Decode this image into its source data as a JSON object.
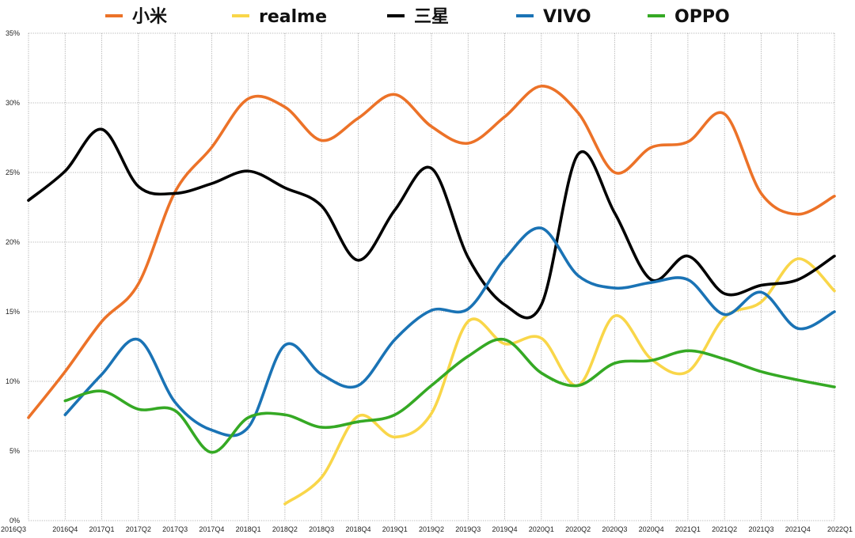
{
  "chart_data": {
    "type": "line",
    "title": "",
    "xlabel": "",
    "ylabel": "",
    "ylim": [
      0,
      35
    ],
    "y_ticks": [
      0,
      5,
      10,
      15,
      20,
      25,
      30,
      35
    ],
    "y_tick_suffix": "%",
    "grid": true,
    "legend_position": "top",
    "categories": [
      "2016Q3",
      "2016Q4",
      "2017Q1",
      "2017Q2",
      "2017Q3",
      "2017Q4",
      "2018Q1",
      "2018Q2",
      "2018Q3",
      "2018Q4",
      "2019Q1",
      "2019Q2",
      "2019Q3",
      "2019Q4",
      "2020Q1",
      "2020Q2",
      "2020Q3",
      "2020Q4",
      "2021Q1",
      "2021Q2",
      "2021Q3",
      "2021Q4",
      "2022Q1"
    ],
    "series": [
      {
        "name": "小米",
        "color": "#ec7228",
        "values": [
          7.4,
          10.7,
          14.3,
          17.0,
          23.6,
          26.8,
          30.3,
          29.7,
          27.3,
          28.9,
          30.6,
          28.3,
          27.1,
          29.0,
          31.2,
          29.3,
          25.0,
          26.8,
          27.2,
          29.2,
          23.5,
          22.0,
          23.3
        ]
      },
      {
        "name": "realme",
        "color": "#f9d649",
        "values": [
          null,
          null,
          null,
          null,
          null,
          null,
          null,
          1.2,
          3.1,
          7.5,
          6.0,
          7.7,
          14.3,
          12.7,
          13.1,
          9.7,
          14.7,
          11.6,
          10.7,
          14.6,
          15.7,
          18.8,
          16.5
        ]
      },
      {
        "name": "三星",
        "color": "#000000",
        "values": [
          23.0,
          25.1,
          28.1,
          24.0,
          23.5,
          24.2,
          25.1,
          23.9,
          22.6,
          18.7,
          22.3,
          25.3,
          18.9,
          15.5,
          15.5,
          26.3,
          22.1,
          17.3,
          19.0,
          16.3,
          16.9,
          17.3,
          19.0
        ]
      },
      {
        "name": "VIVO",
        "color": "#1a73b5",
        "values": [
          null,
          7.6,
          10.5,
          13.0,
          8.5,
          6.5,
          6.7,
          12.6,
          10.5,
          9.7,
          13.0,
          15.1,
          15.2,
          18.8,
          21.0,
          17.6,
          16.7,
          17.1,
          17.3,
          14.8,
          16.4,
          13.8,
          15.0
        ]
      },
      {
        "name": "OPPO",
        "color": "#35a924",
        "values": [
          null,
          8.6,
          9.3,
          8.0,
          7.9,
          4.9,
          7.4,
          7.6,
          6.7,
          7.1,
          7.6,
          9.7,
          11.8,
          13.0,
          10.6,
          9.7,
          11.3,
          11.5,
          12.2,
          11.6,
          10.7,
          10.1,
          9.6
        ]
      }
    ]
  }
}
